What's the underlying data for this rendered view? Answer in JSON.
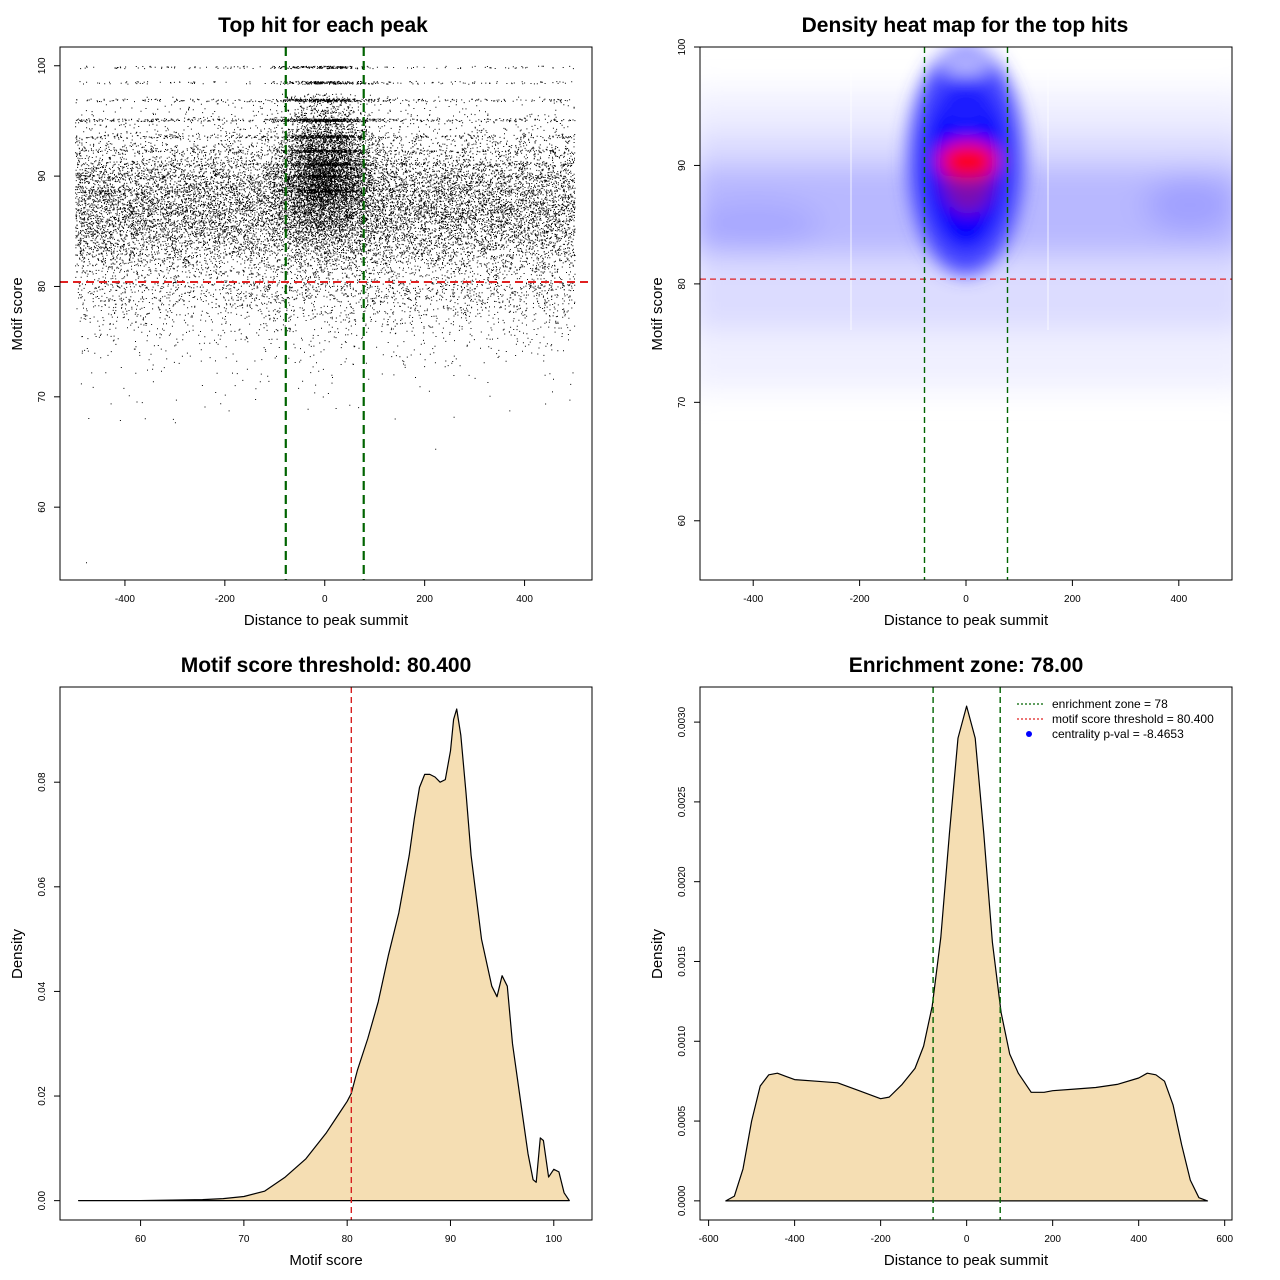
{
  "chart_data": [
    {
      "id": "scatter",
      "type": "scatter",
      "title": "Top hit for each peak",
      "xlabel": "Distance to peak summit",
      "ylabel": "Motif score",
      "xlim": [
        -530,
        535
      ],
      "ylim": [
        53.4,
        101.7
      ],
      "xticks": [
        -400,
        -200,
        0,
        200,
        400
      ],
      "yticks": [
        60,
        70,
        80,
        90,
        100
      ],
      "threshold_y": 80.4,
      "zone_x": [
        -78,
        78
      ],
      "colors": {
        "points": "#000000",
        "threshold": "#e02020",
        "zone": "#006400"
      },
      "note": "approximately 25000 points spanning x -500..500; dense band at y 81-97 concentrated near x=0; sparse tail down to y ~55"
    },
    {
      "id": "heatmap",
      "type": "heatmap",
      "title": "Density heat map for the top hits",
      "xlabel": "Distance to peak summit",
      "ylabel": "Motif score",
      "xlim": [
        -500,
        500
      ],
      "ylim": [
        55,
        100
      ],
      "xticks": [
        -400,
        -200,
        0,
        200,
        400
      ],
      "yticks": [
        60,
        70,
        80,
        90,
        100
      ],
      "threshold_y": 80.4,
      "zone_x": [
        -78,
        78
      ],
      "peak": {
        "x": 5,
        "y": 90.5
      },
      "colors": {
        "low": "#ffffff",
        "mid": "#0000ff",
        "high": "#ff0000",
        "threshold": "#e02020",
        "zone": "#006400"
      }
    },
    {
      "id": "score_density",
      "type": "area",
      "title": "Motif score threshold: 80.400",
      "xlabel": "Motif score",
      "ylabel": "Density",
      "xlim": [
        52.2,
        103.7
      ],
      "ylim": [
        -0.0037,
        0.0982
      ],
      "xticks": [
        60,
        70,
        80,
        90,
        100
      ],
      "yticks": [
        0.0,
        0.02,
        0.04,
        0.06,
        0.08
      ],
      "ytick_labels": [
        "0.00",
        "0.02",
        "0.04",
        "0.06",
        "0.08"
      ],
      "threshold_x": 80.4,
      "x": [
        54,
        60,
        66,
        68,
        70,
        72,
        74,
        76,
        78,
        79,
        80,
        80.4,
        81,
        82,
        83,
        84,
        85,
        86,
        86.5,
        87,
        87.5,
        88,
        88.5,
        89,
        89.5,
        90,
        90.3,
        90.6,
        91,
        91.5,
        92,
        93,
        94,
        94.5,
        95,
        95.5,
        96,
        97,
        97.5,
        98,
        98.3,
        98.7,
        99,
        99.5,
        100,
        100.5,
        101,
        101.5
      ],
      "y": [
        0.0,
        0.0,
        0.0002,
        0.0004,
        0.0008,
        0.0018,
        0.0045,
        0.008,
        0.013,
        0.016,
        0.019,
        0.0205,
        0.025,
        0.031,
        0.038,
        0.047,
        0.055,
        0.066,
        0.073,
        0.079,
        0.0815,
        0.0815,
        0.081,
        0.08,
        0.0805,
        0.086,
        0.092,
        0.094,
        0.089,
        0.078,
        0.066,
        0.05,
        0.041,
        0.039,
        0.043,
        0.041,
        0.03,
        0.016,
        0.009,
        0.004,
        0.0035,
        0.012,
        0.0115,
        0.0045,
        0.006,
        0.0055,
        0.0015,
        0.0
      ]
    },
    {
      "id": "distance_density",
      "type": "area",
      "title": "Enrichment zone: 78.00",
      "xlabel": "Distance to peak summit",
      "ylabel": "Density",
      "xlim": [
        -620,
        617
      ],
      "ylim": [
        -0.00012,
        0.00322
      ],
      "xticks": [
        -600,
        -400,
        -200,
        0,
        200,
        400,
        600
      ],
      "yticks": [
        0.0,
        0.0005,
        0.001,
        0.0015,
        0.002,
        0.0025,
        0.003
      ],
      "ytick_labels": [
        "0.0000",
        "0.0005",
        "0.0010",
        "0.0015",
        "0.0020",
        "0.0025",
        "0.0030"
      ],
      "zone_x": [
        -78,
        78
      ],
      "x": [
        -560,
        -540,
        -520,
        -500,
        -480,
        -460,
        -440,
        -420,
        -400,
        -350,
        -300,
        -250,
        -200,
        -180,
        -150,
        -120,
        -100,
        -80,
        -60,
        -40,
        -20,
        0,
        20,
        40,
        60,
        80,
        100,
        120,
        150,
        180,
        200,
        250,
        300,
        350,
        400,
        420,
        440,
        460,
        480,
        500,
        520,
        540,
        560
      ],
      "y": [
        0.0,
        3e-05,
        0.0002,
        0.0005,
        0.00072,
        0.00079,
        0.0008,
        0.00078,
        0.00076,
        0.00075,
        0.00074,
        0.00069,
        0.00064,
        0.00065,
        0.00073,
        0.00083,
        0.00097,
        0.00122,
        0.00165,
        0.0023,
        0.0029,
        0.0031,
        0.0029,
        0.0023,
        0.00162,
        0.00118,
        0.00092,
        0.0008,
        0.00068,
        0.00068,
        0.00069,
        0.0007,
        0.00071,
        0.00073,
        0.00077,
        0.0008,
        0.00079,
        0.00075,
        0.0006,
        0.00035,
        0.00013,
        2e-05,
        0.0
      ],
      "legend": [
        {
          "label": "enrichment zone = 78",
          "color": "#006400",
          "symbol": "dotted-line"
        },
        {
          "label": "motif score threshold = 80.400",
          "color": "#e02020",
          "symbol": "dotted-line"
        },
        {
          "label": "centrality p-val = -8.4653",
          "color": "#0000ff",
          "symbol": "dot"
        }
      ],
      "legend_position": "top-right"
    }
  ]
}
